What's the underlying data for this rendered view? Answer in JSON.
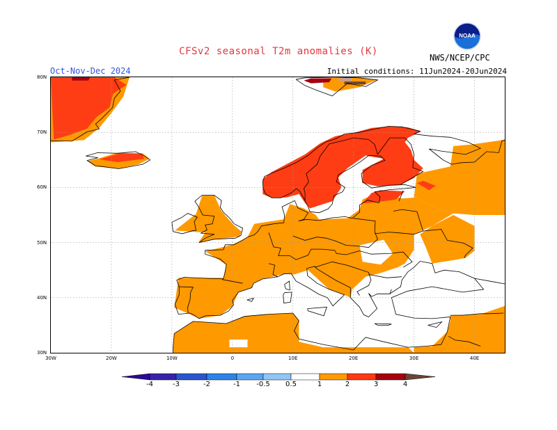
{
  "title": "CFSv2 seasonal T2m anomalies (K)",
  "season": "Oct-Nov-Dec 2024",
  "initial_conditions": "Initial conditions: 11Jun2024-20Jun2024",
  "agency": "NWS/NCEP/CPC",
  "logo_text": "NOAA",
  "map": {
    "lat_labels": [
      "80N",
      "70N",
      "60N",
      "50N",
      "40N",
      "30N"
    ],
    "lon_labels": [
      "30W",
      "20W",
      "10W",
      "0",
      "10E",
      "20E",
      "30E",
      "40E"
    ],
    "gridlines": true,
    "extent": {
      "lon_min": -30,
      "lon_max": 45,
      "lat_min": 30,
      "lat_max": 80
    }
  },
  "colorbar": {
    "labels": [
      "-4",
      "-3",
      "-2",
      "-1",
      "-0.5",
      "0.5",
      "1",
      "2",
      "3",
      "4"
    ],
    "colors": [
      "#3a22a8",
      "#2a55cc",
      "#2f82e6",
      "#5aa6f2",
      "#8fc6f7",
      "#ffffff",
      "#ff9a00",
      "#ff3a12",
      "#a6000f",
      "#c49a8d",
      "#6b4438",
      "#2a0a98"
    ]
  },
  "anomaly_colors": {
    "0.5 to 1": "#ff9900",
    "1 to 2": "#ff3d14",
    "2 to 3": "#a30010",
    "3 to 4": "#c4a093",
    "above 4": "#6b4438"
  }
}
